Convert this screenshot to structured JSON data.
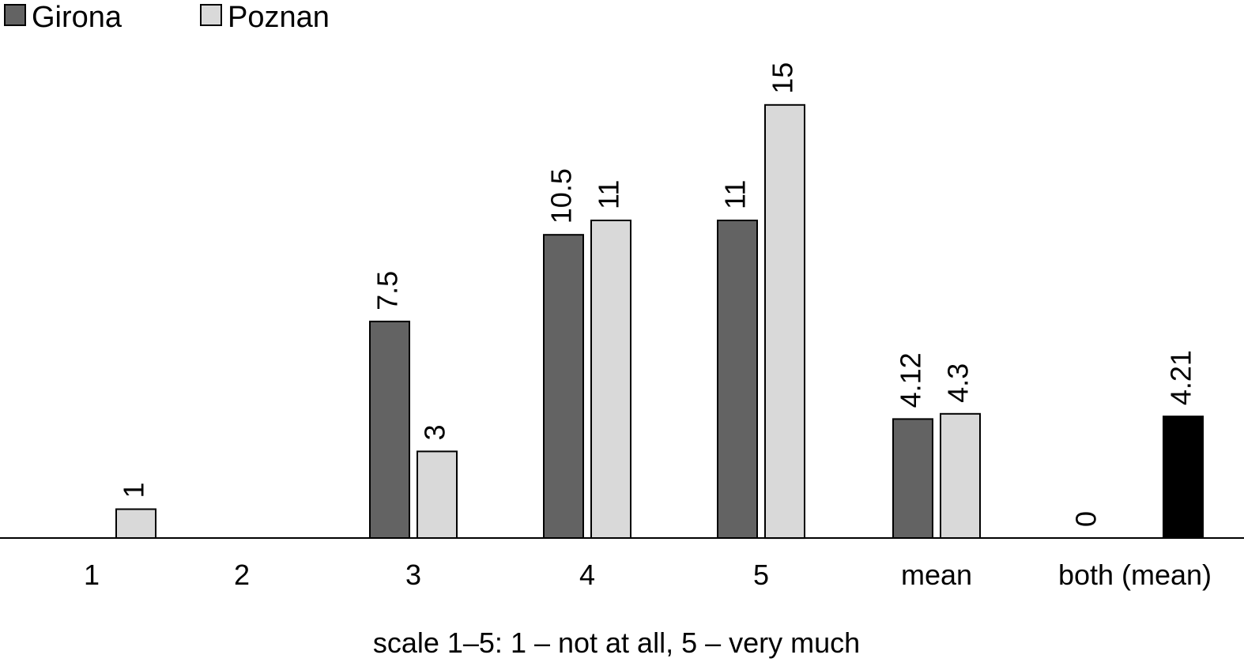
{
  "chart_data": {
    "type": "bar",
    "title": "",
    "xlabel": "scale 1–5: 1 – not at all, 5 – very much",
    "ylabel": "",
    "ylim": [
      0,
      16
    ],
    "grid": false,
    "legend": "top-left",
    "categories": [
      "1",
      "2",
      "3",
      "4",
      "5",
      "mean",
      "both (mean)"
    ],
    "series": [
      {
        "name": "Girona",
        "color": "#636363",
        "values": [
          null,
          null,
          7.5,
          10.5,
          11,
          4.12,
          0
        ],
        "labels": [
          "",
          "",
          "7.5",
          "10.5",
          "11",
          "4.12",
          "0"
        ]
      },
      {
        "name": "Poznan",
        "color": "#d9d9d9",
        "values": [
          1,
          null,
          3,
          11,
          15,
          4.3,
          4.21
        ],
        "labels": [
          "1",
          "",
          "3",
          "11",
          "15",
          "4.3",
          "4.21"
        ],
        "point_colors": [
          null,
          null,
          null,
          null,
          null,
          null,
          "#000000"
        ]
      }
    ]
  }
}
